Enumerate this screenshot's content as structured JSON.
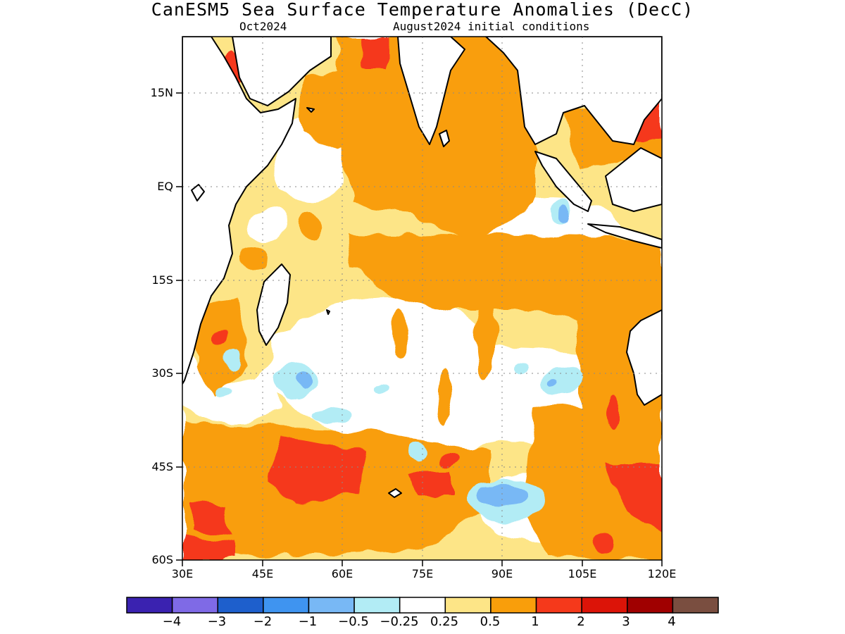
{
  "title": "CanESM5 Sea Surface Temperature Anomalies (DecC)",
  "subtitle_left": "Oct2024",
  "subtitle_right": "August2024 initial conditions",
  "map": {
    "region": "Indian Ocean",
    "lon_range": [
      30,
      120
    ],
    "lat_range": [
      -60,
      24
    ],
    "lat_ticks": [
      "15N",
      "EQ",
      "15S",
      "30S",
      "45S",
      "60S"
    ],
    "lon_ticks": [
      "30E",
      "45E",
      "60E",
      "75E",
      "90E",
      "105E",
      "120E"
    ],
    "grid": "dotted"
  },
  "colorbar": {
    "colors": [
      "#3a22b0",
      "#7f6ae6",
      "#1e5fcc",
      "#3f94f0",
      "#78b8f5",
      "#b2ecf5",
      "#ffffff",
      "#fde587",
      "#f99e0b",
      "#f5391b",
      "#dc1408",
      "#a00000",
      "#7a4e40"
    ],
    "labels": [
      "−4",
      "−3",
      "−2",
      "−1",
      "−0.5",
      "−0.25",
      "0.25",
      "0.5",
      "1",
      "2",
      "3",
      "4"
    ]
  }
}
